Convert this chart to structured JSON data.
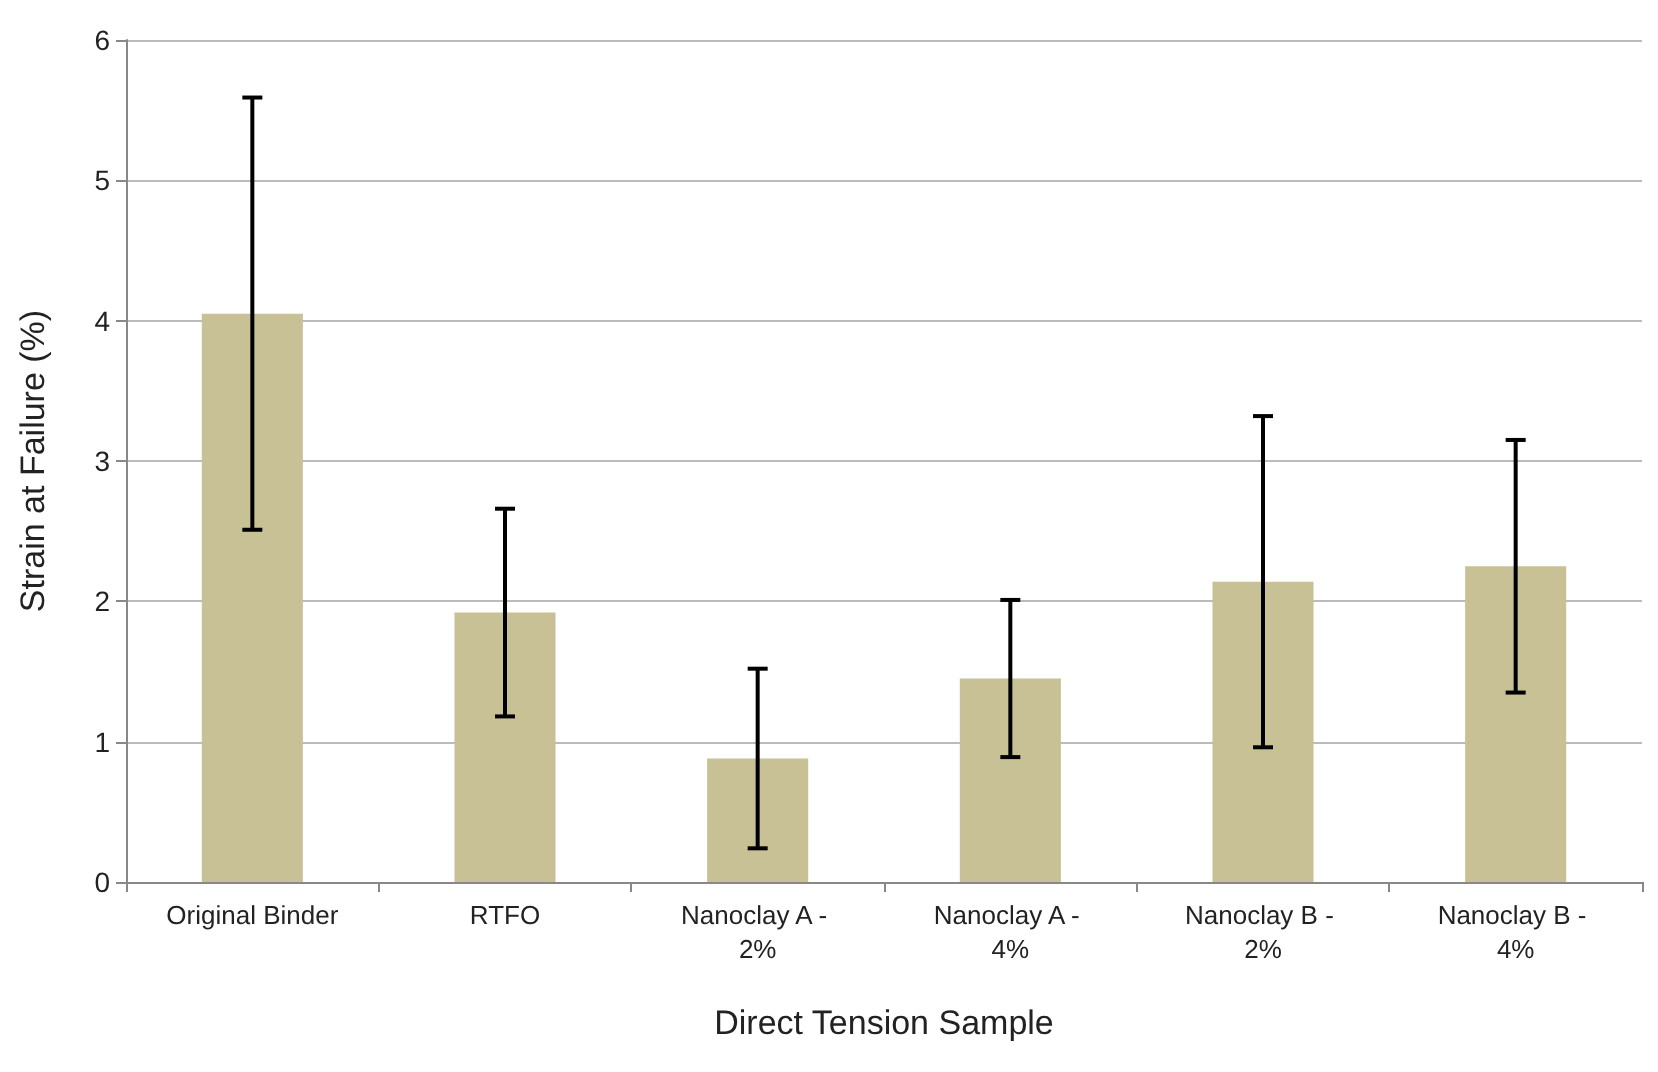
{
  "chart_data": {
    "type": "bar",
    "xlabel": "Direct Tension Sample",
    "ylabel": "Strain at Failure (%)",
    "categories": [
      "Original Binder",
      "RTFO",
      "Nanoclay A - 2%",
      "Nanoclay A - 4%",
      "Nanoclay B - 2%",
      "Nanoclay B - 4%"
    ],
    "values": [
      4.05,
      1.92,
      0.88,
      1.45,
      2.14,
      2.25
    ],
    "errors": [
      1.54,
      0.74,
      0.64,
      0.56,
      1.18,
      0.9
    ],
    "color": "#c8c195",
    "ylim": [
      0,
      6
    ],
    "yticks": [
      0,
      1,
      2,
      3,
      4,
      5,
      6
    ],
    "grid": "y"
  }
}
